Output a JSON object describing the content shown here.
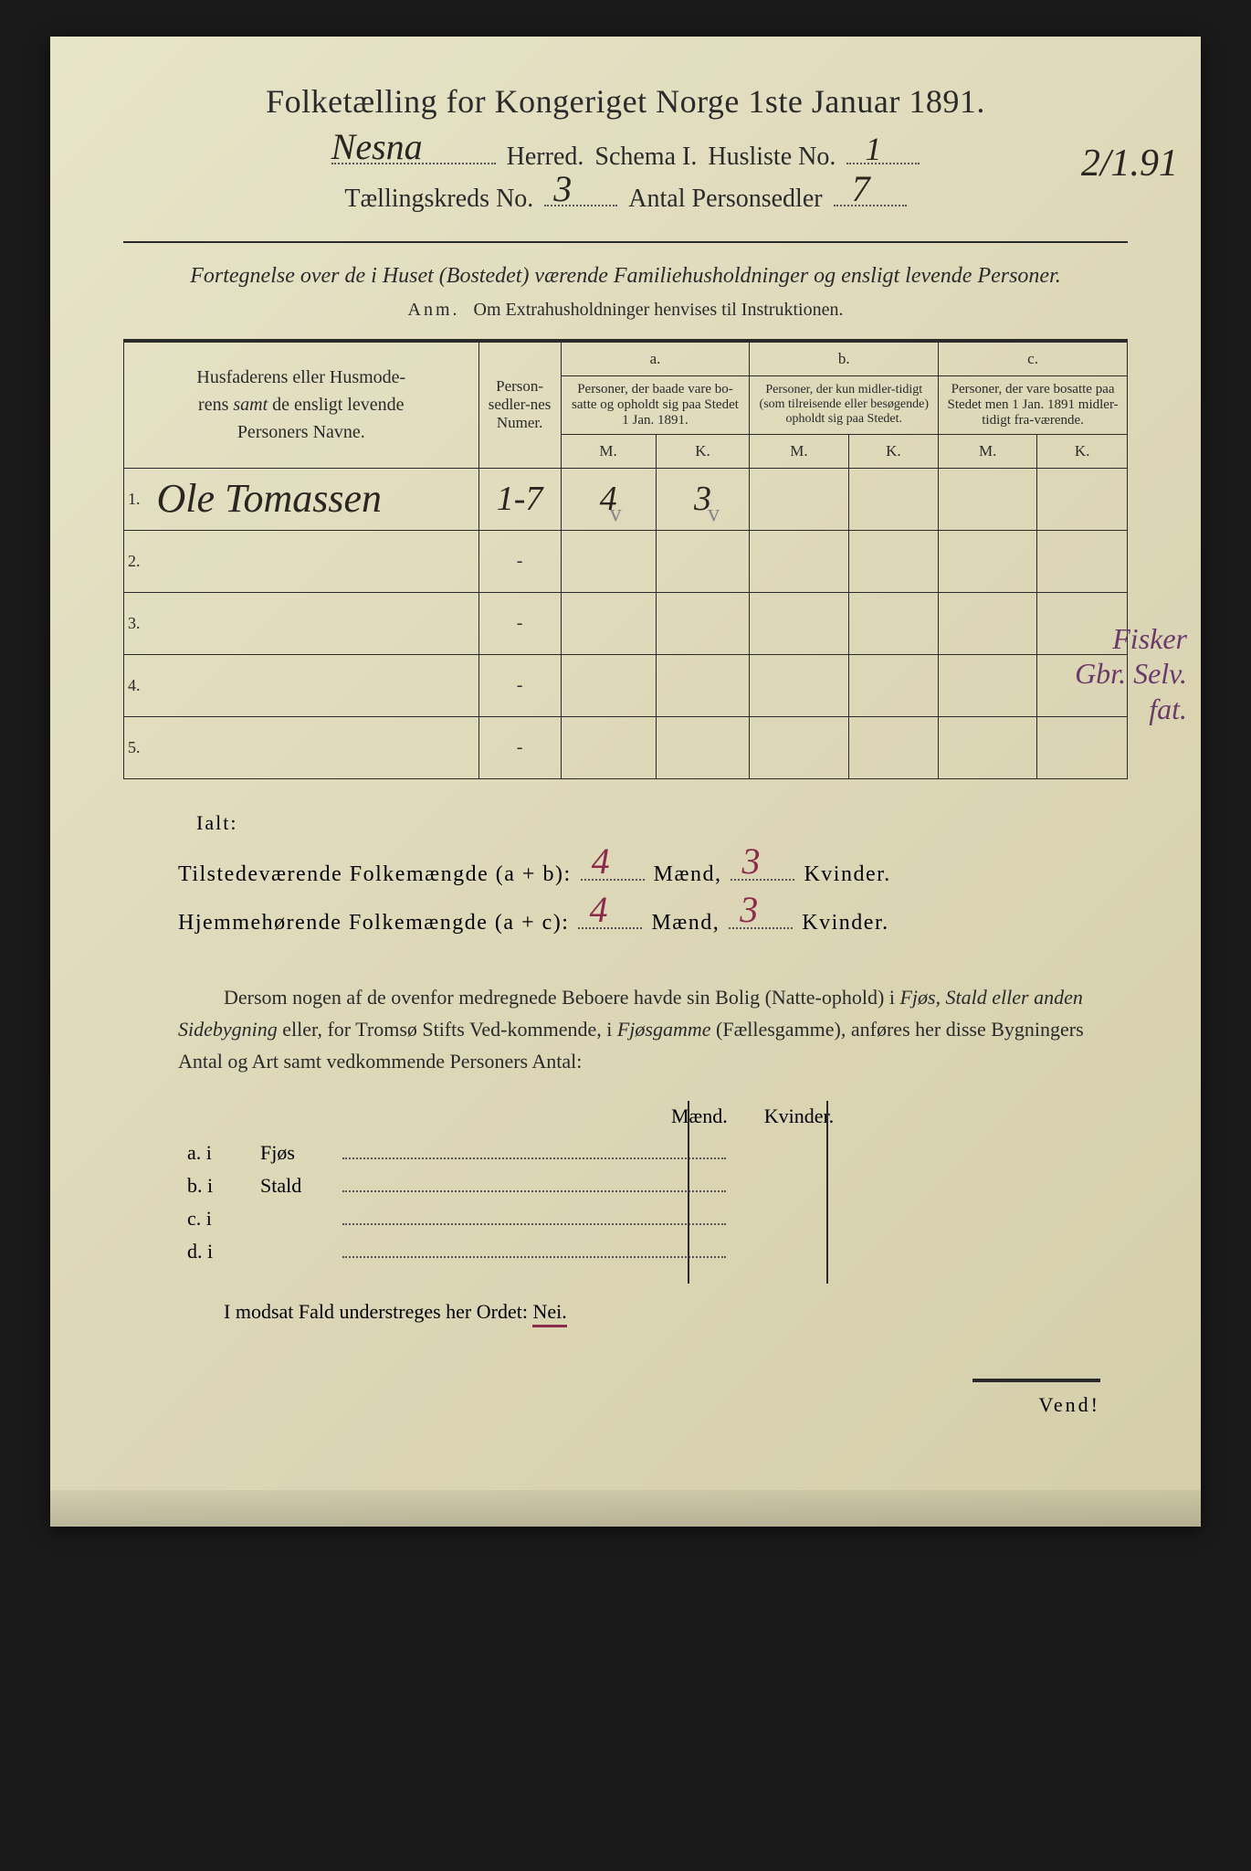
{
  "title": "Folketælling for Kongeriget Norge 1ste Januar 1891.",
  "header": {
    "herred_value": "Nesna",
    "herred_label": "Herred.",
    "schema_label": "Schema I.",
    "husliste_label": "Husliste No.",
    "husliste_value": "1",
    "kreds_label": "Tællingskreds No.",
    "kreds_value": "3",
    "antal_label": "Antal Personsedler",
    "antal_value": "7",
    "margin_date": "2/1.91"
  },
  "subtitle": "Fortegnelse over de i Huset (Bostedet) værende Familiehusholdninger og ensligt levende Personer.",
  "anm_label": "Anm.",
  "anm_text": "Om Extrahusholdninger henvises til Instruktionen.",
  "table": {
    "col_names": "Husfaderens eller Husmoderens samt de ensligt levende Personers Navne.",
    "col_person": "Person-sedler-nes Numer.",
    "col_a_label": "a.",
    "col_a": "Personer, der baade vare bo-satte og opholdt sig paa Stedet 1 Jan. 1891.",
    "col_b_label": "b.",
    "col_b": "Personer, der kun midler-tidigt (som tilreisende eller besøgende) opholdt sig paa Stedet.",
    "col_c_label": "c.",
    "col_c": "Personer, der vare bosatte paa Stedet men 1 Jan. 1891 midler-tidigt fra-værende.",
    "mk_m": "M.",
    "mk_k": "K.",
    "rows": [
      {
        "n": "1.",
        "name": "Ole Tomassen",
        "person": "1-7",
        "am": "4",
        "ak": "3",
        "bm": "",
        "bk": "",
        "cm": "",
        "ck": ""
      },
      {
        "n": "2.",
        "name": "",
        "person": "-",
        "am": "",
        "ak": "",
        "bm": "",
        "bk": "",
        "cm": "",
        "ck": ""
      },
      {
        "n": "3.",
        "name": "",
        "person": "-",
        "am": "",
        "ak": "",
        "bm": "",
        "bk": "",
        "cm": "",
        "ck": ""
      },
      {
        "n": "4.",
        "name": "",
        "person": "-",
        "am": "",
        "ak": "",
        "bm": "",
        "bk": "",
        "cm": "",
        "ck": ""
      },
      {
        "n": "5.",
        "name": "",
        "person": "-",
        "am": "",
        "ak": "",
        "bm": "",
        "bk": "",
        "cm": "",
        "ck": ""
      }
    ]
  },
  "margin_note": "Fisker\nGbr. Selv.\nfat.",
  "ialt": "Ialt:",
  "summary": {
    "line1_label": "Tilstedeværende Folkemængde (a + b):",
    "line2_label": "Hjemmehørende Folkemængde (a + c):",
    "maend": "Mænd,",
    "kvinder": "Kvinder.",
    "l1_m": "4",
    "l1_k": "3",
    "l2_m": "4",
    "l2_k": "3"
  },
  "paragraph": "Dersom nogen af de ovenfor medregnede Beboere havde sin Bolig (Natte-ophold) i Fjøs, Stald eller anden Sidebygning eller, for Tromsø Stifts Ved-kommende, i Fjøsgamme (Fællesgamme), anføres her disse Bygningers Antal og Art samt vedkommende Personers Antal:",
  "side_buildings": {
    "maend": "Mænd.",
    "kvinder": "Kvinder.",
    "rows": [
      {
        "label": "a.  i",
        "name": "Fjøs"
      },
      {
        "label": "b.  i",
        "name": "Stald"
      },
      {
        "label": "c.  i",
        "name": ""
      },
      {
        "label": "d.  i",
        "name": ""
      }
    ]
  },
  "nei_line": "I modsat Fald understreges her Ordet:",
  "nei": "Nei.",
  "vend": "Vend!",
  "colors": {
    "paper_bg": "#ddd8b8",
    "text": "#2a2a2a",
    "handwriting": "#2a2520",
    "red_ink": "#8b2a4a",
    "purple_ink": "#6b3a6b"
  }
}
